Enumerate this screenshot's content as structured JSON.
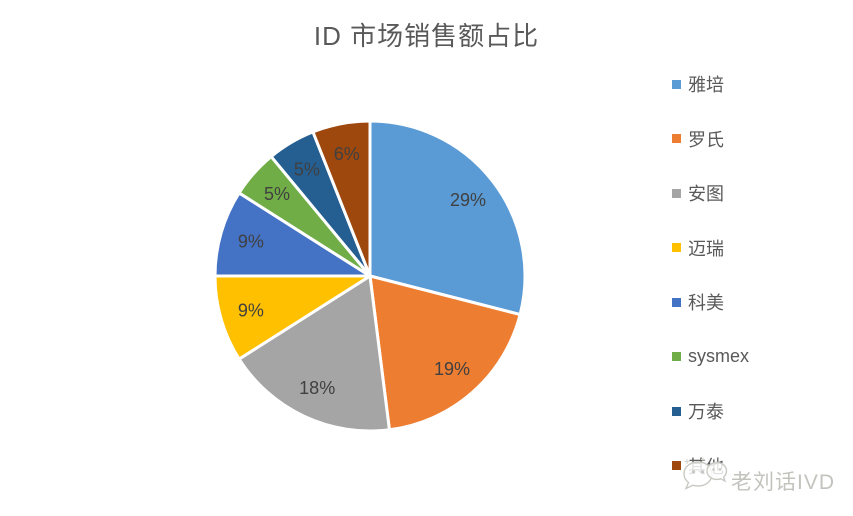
{
  "title": "ID 市场销售额占比",
  "chart_data": {
    "type": "pie",
    "title": "ID 市场销售额占比",
    "categories": [
      "雅培",
      "罗氏",
      "安图",
      "迈瑞",
      "科美",
      "sysmex",
      "万泰",
      "其他"
    ],
    "values": [
      29,
      19,
      18,
      9,
      9,
      5,
      5,
      6
    ],
    "labels": [
      "29%",
      "19%",
      "18%",
      "9%",
      "9%",
      "5%",
      "5%",
      "6%"
    ],
    "colors": [
      "#5B9BD5",
      "#ED7D31",
      "#A5A5A5",
      "#FFC000",
      "#4472C4",
      "#70AD47",
      "#255E91",
      "#9E480E"
    ],
    "unit": "percent",
    "start_angle_deg": 0,
    "direction": "clockwise",
    "legend_position": "right",
    "label_position": "inside-end",
    "slice_border_color": "#FFFFFF",
    "label_color": "#404040",
    "title_color": "#595959",
    "legend_text_color": "#595959"
  },
  "watermark": {
    "text": "老刘话IVD",
    "icon": "wechat-chat-bubbles-icon",
    "color": "#C3C3BD"
  }
}
